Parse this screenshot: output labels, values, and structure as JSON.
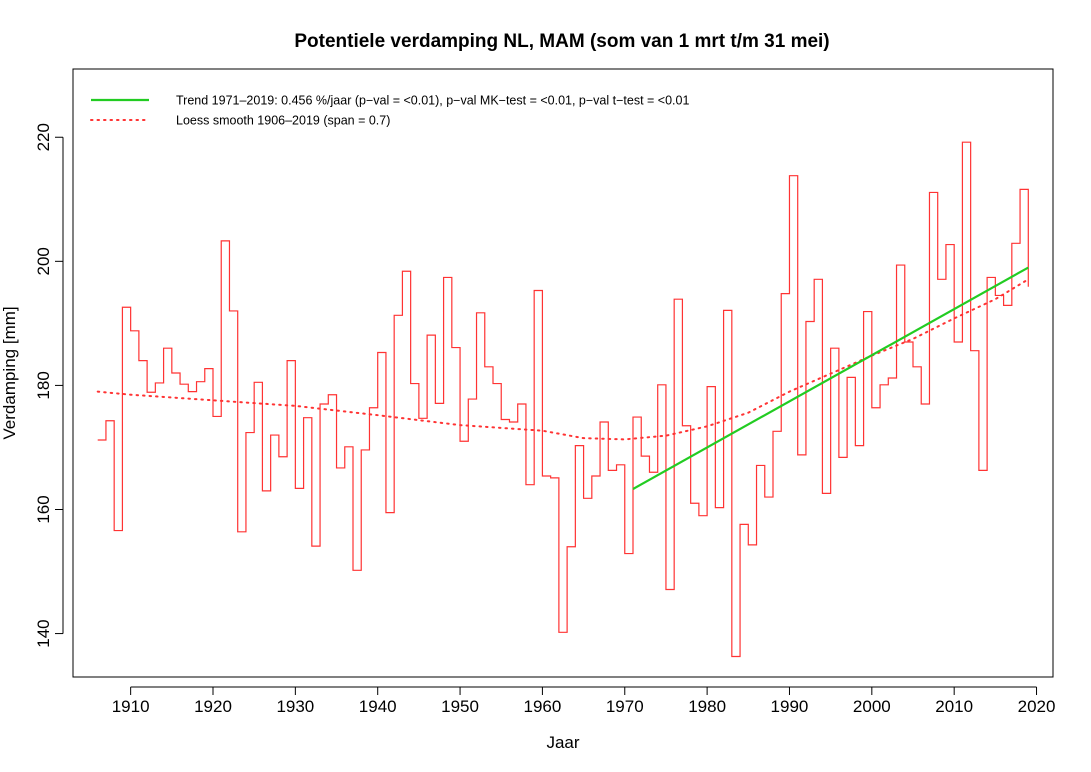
{
  "chart_data": {
    "type": "line",
    "title": "Potentiele verdamping NL, MAM (som van 1 mrt t/m 31 mei)",
    "xlabel": "Jaar",
    "ylabel": "Verdamping [mm]",
    "xlim": [
      1903,
      2022
    ],
    "ylim": [
      133,
      231
    ],
    "xticks": [
      1910,
      1920,
      1930,
      1940,
      1950,
      1960,
      1970,
      1980,
      1990,
      2000,
      2010,
      2020
    ],
    "yticks": [
      140,
      160,
      180,
      200,
      220
    ],
    "grid": false,
    "legend_position": "top-left",
    "legend": [
      {
        "label": "Trend 1971–2019:  0.456 %/jaar (p−val = <0.01), p−val MK−test = <0.01, p−val t−test = <0.01",
        "color": "#22cc22",
        "style": "solid"
      },
      {
        "label": "Loess smooth 1906–2019 (span = 0.7)",
        "color": "#ff3333",
        "style": "dotted"
      }
    ],
    "series": [
      {
        "style": "steps",
        "color": "#ff3333",
        "x": [
          1906,
          1907,
          1908,
          1909,
          1910,
          1911,
          1912,
          1913,
          1914,
          1915,
          1916,
          1917,
          1918,
          1919,
          1920,
          1921,
          1922,
          1923,
          1924,
          1925,
          1926,
          1927,
          1928,
          1929,
          1930,
          1931,
          1932,
          1933,
          1934,
          1935,
          1936,
          1937,
          1938,
          1939,
          1940,
          1941,
          1942,
          1943,
          1944,
          1945,
          1946,
          1947,
          1948,
          1949,
          1950,
          1951,
          1952,
          1953,
          1954,
          1955,
          1956,
          1957,
          1958,
          1959,
          1960,
          1961,
          1962,
          1963,
          1964,
          1965,
          1966,
          1967,
          1968,
          1969,
          1970,
          1971,
          1972,
          1973,
          1974,
          1975,
          1976,
          1977,
          1978,
          1979,
          1980,
          1981,
          1982,
          1983,
          1984,
          1985,
          1986,
          1987,
          1988,
          1989,
          1990,
          1991,
          1992,
          1993,
          1994,
          1995,
          1996,
          1997,
          1998,
          1999,
          2000,
          2001,
          2002,
          2003,
          2004,
          2005,
          2006,
          2007,
          2008,
          2009,
          2010,
          2011,
          2012,
          2013,
          2014,
          2015,
          2016,
          2017,
          2018,
          2019
        ],
        "values": [
          171.2,
          174.3,
          156.6,
          192.6,
          188.8,
          184.0,
          178.9,
          180.4,
          186.0,
          182.0,
          180.2,
          179.0,
          180.6,
          182.7,
          175.0,
          203.3,
          192.0,
          156.4,
          172.4,
          180.5,
          163.0,
          172.0,
          168.5,
          184.0,
          163.4,
          174.8,
          154.1,
          177.0,
          178.5,
          166.7,
          170.1,
          150.2,
          169.6,
          176.4,
          185.3,
          159.5,
          191.3,
          198.4,
          180.3,
          174.7,
          188.1,
          177.1,
          197.4,
          186.1,
          171.0,
          177.8,
          191.7,
          183.0,
          180.3,
          174.5,
          174.1,
          177.0,
          164.0,
          195.3,
          165.4,
          165.1,
          140.2,
          154.0,
          170.3,
          161.8,
          165.4,
          174.1,
          166.3,
          167.2,
          152.9,
          174.9,
          168.6,
          166.0,
          180.1,
          147.1,
          193.9,
          173.5,
          161.0,
          159.0,
          179.8,
          160.3,
          192.1,
          136.3,
          157.6,
          154.3,
          167.1,
          162.0,
          172.6,
          194.8,
          213.8,
          168.8,
          190.3,
          197.1,
          162.6,
          186.0,
          168.4,
          181.3,
          170.3,
          191.9,
          176.4,
          180.1,
          181.2,
          199.4,
          187.0,
          183.0,
          177.0,
          211.1,
          197.1,
          202.7,
          187.0,
          219.2,
          185.6,
          166.3,
          197.4,
          194.5,
          192.9,
          202.9,
          211.6,
          195.9
        ]
      },
      {
        "style": "dotted",
        "color": "#ff3333",
        "x": [
          1906,
          1910,
          1920,
          1930,
          1940,
          1950,
          1960,
          1965,
          1970,
          1975,
          1980,
          1985,
          1990,
          1995,
          2000,
          2005,
          2010,
          2015,
          2019
        ],
        "values": [
          179.0,
          178.5,
          177.6,
          176.7,
          175.2,
          173.6,
          172.7,
          171.5,
          171.3,
          171.9,
          173.4,
          175.6,
          179.0,
          181.9,
          184.8,
          187.5,
          190.8,
          193.9,
          197.1
        ]
      },
      {
        "style": "solid",
        "color": "#22cc22",
        "x": [
          1971,
          2019
        ],
        "values": [
          163.3,
          199.0
        ]
      }
    ]
  }
}
